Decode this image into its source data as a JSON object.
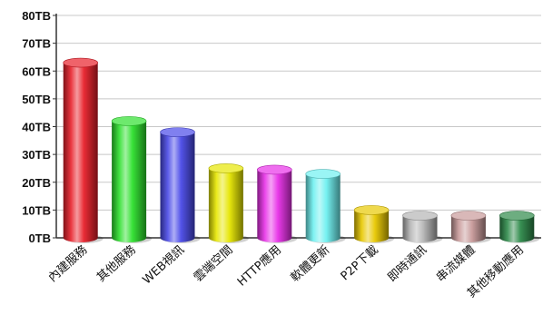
{
  "chart_data": {
    "type": "bar",
    "style": "3d-cylinder",
    "title": "",
    "xlabel": "",
    "ylabel": "",
    "unit": "TB",
    "ylim": [
      0,
      80
    ],
    "ytick_step": 10,
    "ytick_labels": [
      "0TB",
      "10TB",
      "20TB",
      "30TB",
      "40TB",
      "50TB",
      "60TB",
      "70TB",
      "80TB"
    ],
    "grid": true,
    "legend": "none",
    "categories": [
      "內建服務",
      "其他服務",
      "WEB視訊",
      "雲端空間",
      "HTTP應用",
      "軟體更新",
      "P2P下載",
      "即時通訊",
      "串流媒體",
      "其他移動應用"
    ],
    "values": [
      63,
      42,
      38,
      25,
      24.5,
      23,
      10,
      8,
      8,
      8
    ],
    "colors": [
      "#e8202a",
      "#2ee02e",
      "#4a4ae8",
      "#e6e600",
      "#e830e8",
      "#6ef0f0",
      "#e8c800",
      "#b4b4b4",
      "#c89a9a",
      "#2e8a4a"
    ]
  }
}
